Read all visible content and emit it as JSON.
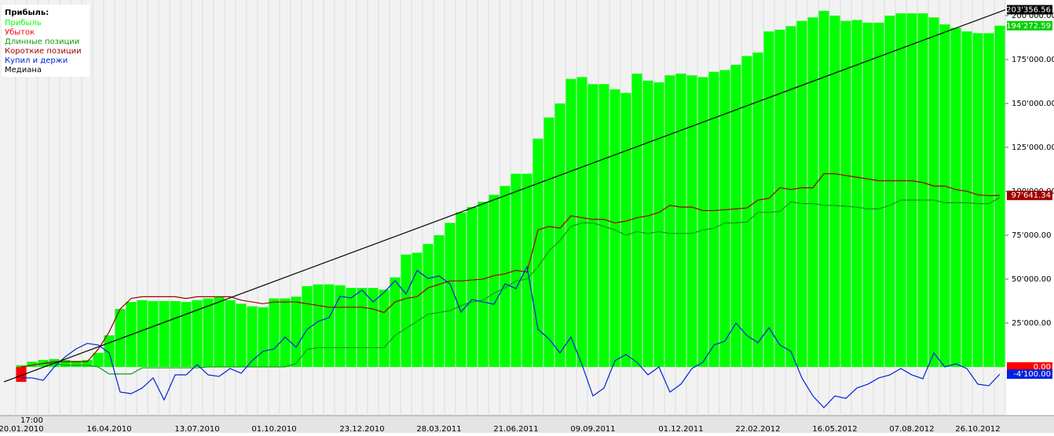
{
  "chart_data": {
    "type": "bar",
    "legend_title": "Прибыль:",
    "time_label": "17:00",
    "categories": [
      "20.01.2010",
      null,
      null,
      null,
      null,
      null,
      null,
      null,
      "16.04.2010",
      null,
      null,
      null,
      null,
      null,
      null,
      null,
      "13.07.2010",
      null,
      null,
      null,
      null,
      null,
      null,
      "01.10.2010",
      null,
      null,
      null,
      null,
      null,
      null,
      null,
      "23.12.2010",
      null,
      null,
      null,
      null,
      null,
      null,
      "28.03.2011",
      null,
      null,
      null,
      null,
      null,
      null,
      "21.06.2011",
      null,
      null,
      null,
      null,
      null,
      null,
      "09.09.2011",
      null,
      null,
      null,
      null,
      null,
      null,
      null,
      "01.12.2011",
      null,
      null,
      null,
      null,
      null,
      null,
      "22.02.2012",
      null,
      null,
      null,
      null,
      null,
      null,
      "16.05.2012",
      null,
      null,
      null,
      null,
      null,
      null,
      "07.08.2012",
      null,
      null,
      null,
      null,
      null,
      "26.10.2012",
      null,
      null
    ],
    "series": [
      {
        "name": "Прибыль",
        "kind": "bar",
        "color": "#00ff00",
        "values": [
          1000,
          3000,
          4000,
          4500,
          4000,
          3500,
          4000,
          8000,
          18000,
          33000,
          37000,
          38000,
          37500,
          37500,
          37500,
          37000,
          38000,
          39000,
          40000,
          38000,
          36000,
          34500,
          34000,
          39000,
          39000,
          40000,
          46000,
          47000,
          47000,
          46500,
          45000,
          45000,
          45000,
          44000,
          51000,
          64000,
          65000,
          70000,
          75000,
          82000,
          88000,
          91000,
          94000,
          98000,
          103000,
          110000,
          110000,
          130000,
          142000,
          150000,
          164000,
          165000,
          161000,
          161000,
          158000,
          156000,
          167000,
          163000,
          162000,
          166000,
          167000,
          166000,
          165000,
          168000,
          169000,
          172000,
          177000,
          179000,
          191000,
          192000,
          194000,
          197000,
          199000,
          202700,
          200000,
          197000,
          197500,
          196000,
          196000,
          200000,
          201300,
          201300,
          201300,
          199000,
          195000,
          193000,
          191000,
          190000,
          190000,
          194272.59
        ]
      },
      {
        "name": "Убыток",
        "kind": "bar",
        "color": "#ff0000",
        "values": [
          -8500,
          0,
          0,
          0,
          0,
          0,
          0,
          0,
          0,
          0,
          0,
          0,
          0,
          0,
          0,
          0,
          0,
          0,
          0,
          0,
          0,
          0,
          0,
          0,
          0,
          0,
          0,
          0,
          0,
          0,
          0,
          0,
          0,
          0,
          0,
          0,
          0,
          0,
          0,
          0,
          0,
          0,
          0,
          0,
          0,
          0,
          0,
          0,
          0,
          0,
          0,
          0,
          0,
          0,
          0,
          0,
          0,
          0,
          0,
          0,
          0,
          0,
          0,
          0,
          0,
          0,
          0,
          0,
          0,
          0,
          0,
          0,
          0,
          0,
          0,
          0,
          0,
          0,
          0,
          0,
          0,
          0,
          0,
          0,
          0,
          0,
          0,
          0,
          0,
          0
        ]
      },
      {
        "name": "Длинные позиции",
        "kind": "line",
        "color": "#109a10",
        "values": [
          0,
          1000,
          2000,
          2000,
          1000,
          1000,
          1000,
          0,
          -4000,
          -4000,
          -4000,
          -500,
          -500,
          -500,
          -500,
          -500,
          -500,
          0,
          0,
          0,
          0,
          0,
          0,
          0,
          0,
          2000,
          10000,
          11000,
          11000,
          11000,
          11000,
          11000,
          11000,
          11000,
          18000,
          22000,
          26000,
          30000,
          31000,
          32000,
          35000,
          37000,
          38000,
          42000,
          45000,
          49000,
          50000,
          57000,
          66000,
          72000,
          80000,
          82000,
          82000,
          80000,
          78000,
          75000,
          77000,
          76000,
          77000,
          76000,
          76000,
          76000,
          78000,
          79000,
          82000,
          82000,
          82500,
          88000,
          88000,
          88500,
          94000,
          93000,
          93000,
          92000,
          92000,
          91500,
          91000,
          90000,
          90000,
          92000,
          95000,
          95000,
          95000,
          95000,
          93500,
          93500,
          93500,
          93000,
          93000,
          96400
        ]
      },
      {
        "name": "Короткие позиции",
        "kind": "line",
        "color": "#a00000",
        "values": [
          0,
          1000,
          2000,
          3000,
          3000,
          3000,
          3000,
          10000,
          20000,
          33000,
          39000,
          40000,
          40000,
          40000,
          40000,
          39000,
          40000,
          40000,
          40000,
          40000,
          38000,
          37000,
          36000,
          37000,
          37000,
          37000,
          36000,
          35000,
          34000,
          34000,
          34000,
          34000,
          33000,
          31000,
          37000,
          39000,
          40000,
          45000,
          47000,
          49000,
          49000,
          49500,
          50000,
          52000,
          53000,
          55000,
          54000,
          78000,
          80000,
          79000,
          86000,
          85000,
          84000,
          84000,
          82000,
          83000,
          85000,
          86000,
          88000,
          92000,
          91000,
          91000,
          89000,
          89000,
          89500,
          90000,
          90500,
          95000,
          96000,
          102000,
          101000,
          102000,
          102000,
          110000,
          110000,
          109000,
          108000,
          107000,
          106000,
          106000,
          106000,
          106000,
          105000,
          103000,
          103000,
          101000,
          100000,
          98000,
          97500,
          97641.34
        ]
      },
      {
        "name": "Купил и держи",
        "kind": "line",
        "color": "#0022dd",
        "values": [
          -6250,
          -6250,
          -7600,
          0,
          5800,
          10300,
          13400,
          12500,
          8000,
          -14300,
          -15200,
          -12000,
          -6250,
          -18750,
          -4500,
          -4500,
          1300,
          -4500,
          -5400,
          -900,
          -3600,
          3600,
          8900,
          10300,
          17000,
          11200,
          21400,
          25900,
          28100,
          40200,
          39300,
          43750,
          37000,
          42400,
          49100,
          41500,
          54900,
          50400,
          51800,
          47300,
          31250,
          38400,
          37000,
          35700,
          47300,
          44600,
          57100,
          21400,
          16000,
          8000,
          17000,
          1300,
          -16500,
          -12000,
          3600,
          7100,
          2700,
          -4500,
          0,
          -14300,
          -9800,
          -900,
          2700,
          12500,
          14700,
          25000,
          17900,
          13800,
          22300,
          12500,
          8900,
          -6250,
          -16500,
          -23200,
          -16500,
          -17900,
          -12000,
          -9800,
          -6250,
          -4500,
          -900,
          -4500,
          -6700,
          8000,
          0,
          1800,
          -900,
          -9800,
          -10700,
          -4100
        ]
      }
    ],
    "trend": {
      "name": "Медиана",
      "color": "#000000",
      "values": [
        -8500,
        203356.56
      ]
    },
    "ylim": [
      -27700,
      208900
    ],
    "yticks": [
      {
        "value": 25000,
        "label": "25'000.00"
      },
      {
        "value": 50000,
        "label": "50'000.00"
      },
      {
        "value": 75000,
        "label": "75'000.00"
      },
      {
        "value": 100000,
        "label": "100'000.00"
      },
      {
        "value": 125000,
        "label": "125'000.00"
      },
      {
        "value": 150000,
        "label": "150'000.00"
      },
      {
        "value": 175000,
        "label": "175'000.00"
      },
      {
        "value": 200000,
        "label": "200'000.00"
      }
    ],
    "tags": [
      {
        "value": 203356.56,
        "label": "203'356.56",
        "color": "#000000"
      },
      {
        "value": 194272.59,
        "label": "194'272.59",
        "color": "#00d000"
      },
      {
        "value": 97641.34,
        "label": "97'641.34",
        "color": "#a00000"
      },
      {
        "value": 0,
        "label": "0.00",
        "color": "#ff0000"
      },
      {
        "value": -4100,
        "label": "-4'100.00",
        "color": "#0022dd"
      }
    ],
    "grid": true
  }
}
